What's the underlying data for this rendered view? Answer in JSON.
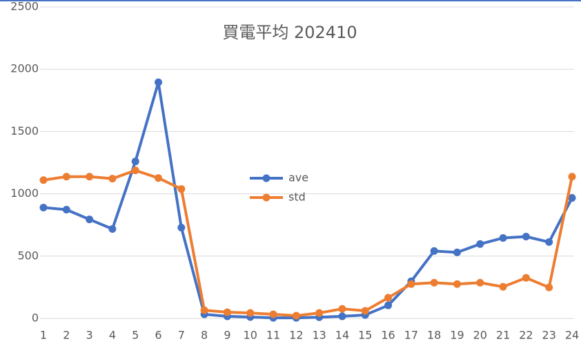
{
  "chart_data": {
    "type": "line",
    "title": "買電平均 202410",
    "categories": [
      "1",
      "2",
      "3",
      "4",
      "5",
      "6",
      "7",
      "8",
      "9",
      "10",
      "11",
      "12",
      "13",
      "14",
      "15",
      "16",
      "17",
      "18",
      "19",
      "20",
      "21",
      "22",
      "23",
      "24"
    ],
    "series": [
      {
        "name": "ave",
        "color": "#4472c4",
        "values": [
          890,
          873,
          795,
          718,
          1260,
          1895,
          729,
          33,
          17,
          11,
          5,
          5,
          10,
          17,
          28,
          105,
          298,
          541,
          530,
          597,
          646,
          657,
          613,
          967
        ]
      },
      {
        "name": "std",
        "color": "#ed7d31",
        "values": [
          1110,
          1138,
          1138,
          1122,
          1188,
          1127,
          1039,
          66,
          50,
          44,
          33,
          22,
          44,
          77,
          61,
          166,
          276,
          287,
          276,
          287,
          254,
          326,
          249,
          1138
        ]
      }
    ],
    "ylim": [
      0,
      2500
    ],
    "yticks": [
      0,
      500,
      1000,
      1500,
      2000,
      2500
    ],
    "grid": true
  }
}
